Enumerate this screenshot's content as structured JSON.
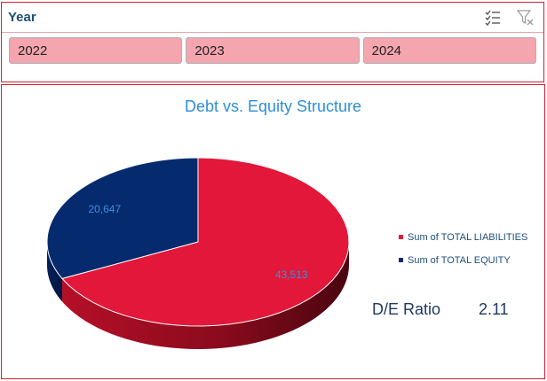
{
  "slicer": {
    "title": "Year",
    "buttons": [
      "2022",
      "2023",
      "2024"
    ]
  },
  "icons": {
    "multi_select": "multi-select-icon",
    "clear_filter": "clear-filter-icon"
  },
  "colors": {
    "liabilities": "#e2173a",
    "equity": "#052b6e",
    "slicer_button": "#f4a5ae",
    "border": "#d6202f"
  },
  "chart": {
    "ratio_label": "D/E Ratio",
    "ratio_value": "2.11"
  },
  "chart_data": {
    "type": "pie",
    "title": "Debt vs. Equity Structure",
    "labels": [
      "Sum of TOTAL LIABILITIES",
      "Sum of TOTAL EQUITY"
    ],
    "values": [
      43513,
      20647
    ],
    "data_labels": [
      "43,513",
      "20,647"
    ],
    "legend": "right",
    "style": "3d"
  }
}
